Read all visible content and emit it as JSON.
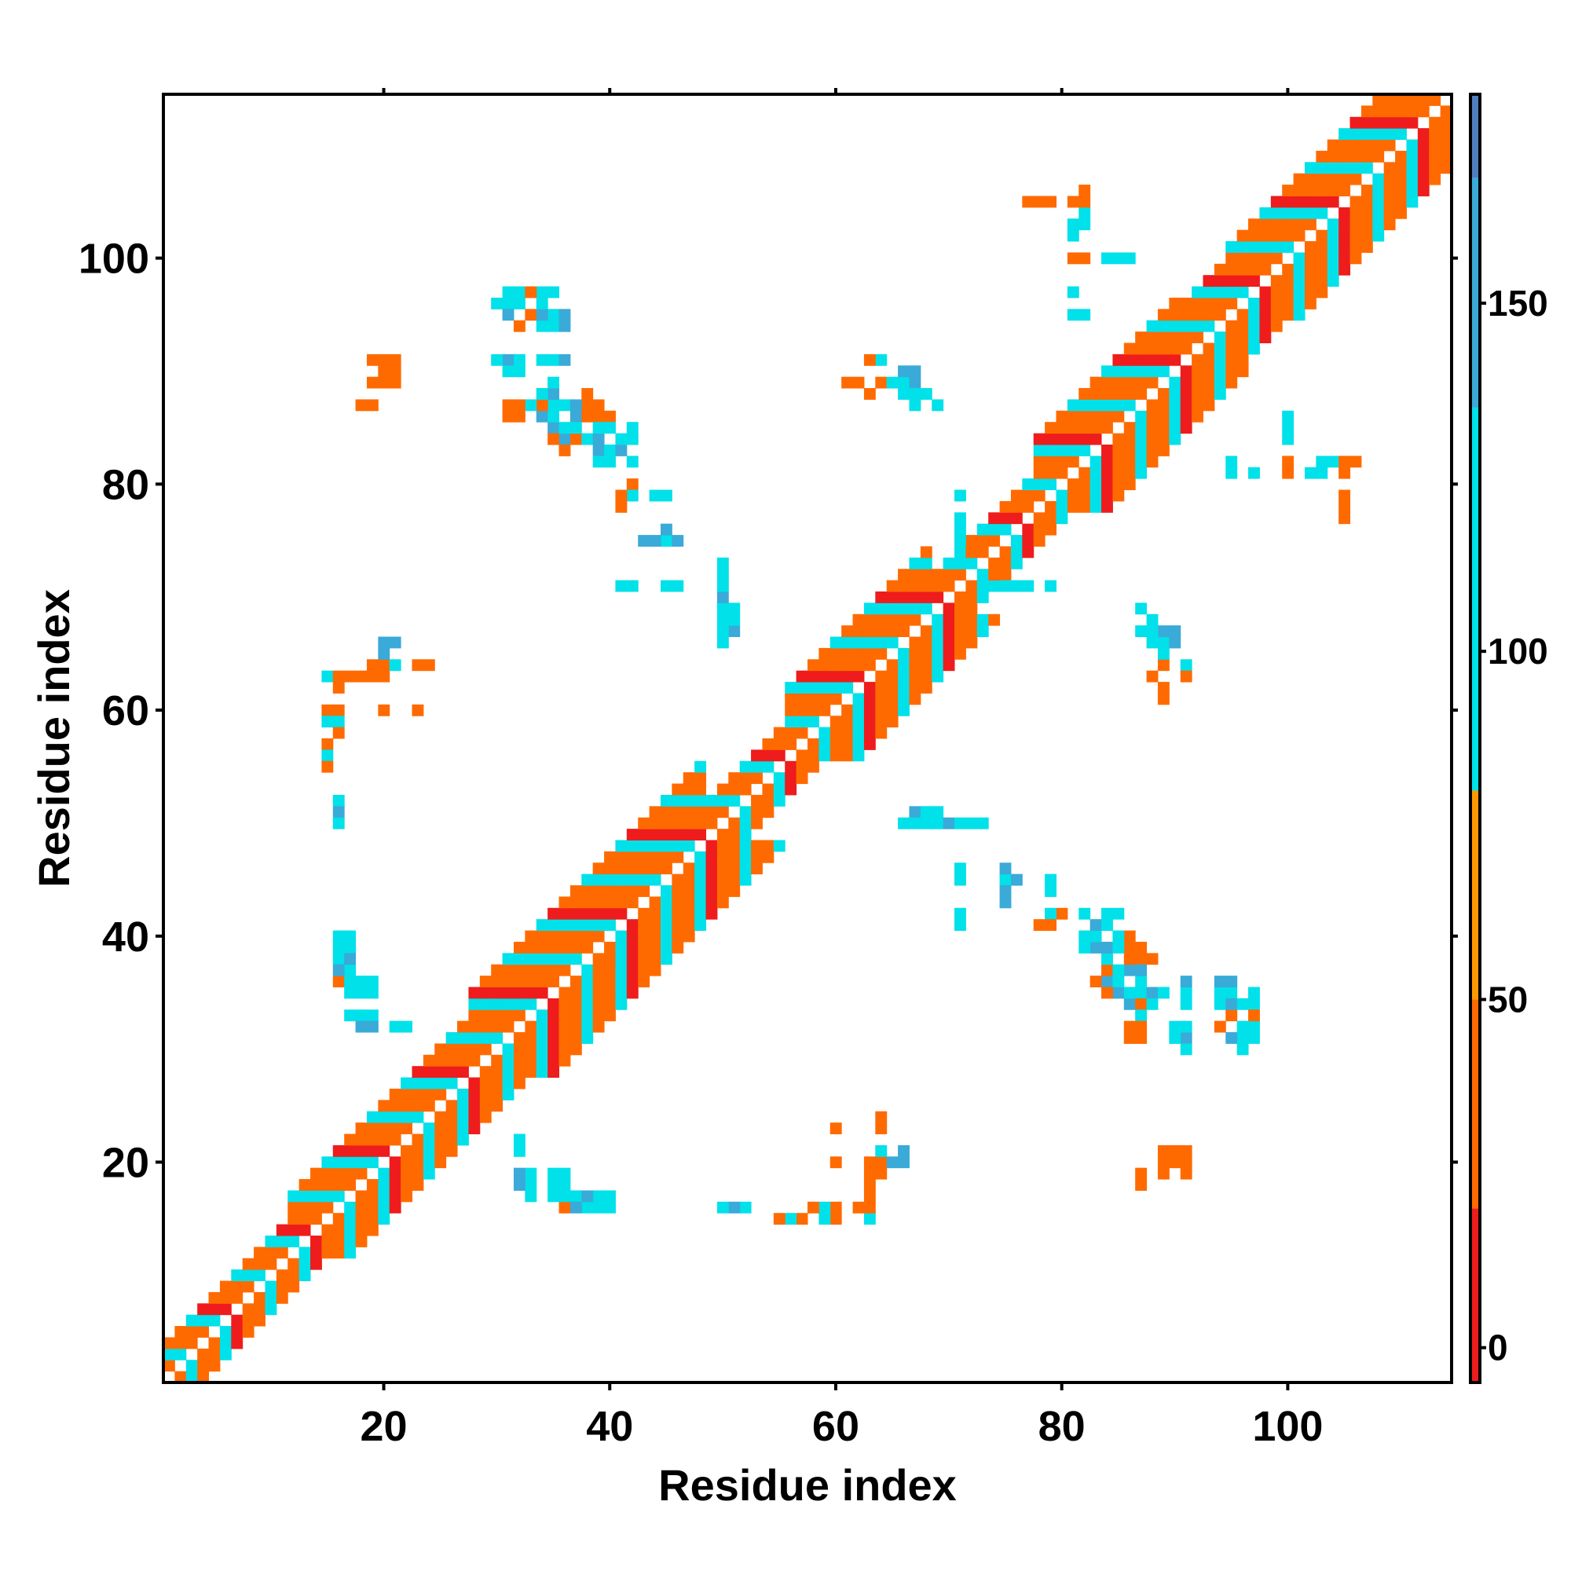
{
  "chart_data": {
    "type": "heatmap",
    "title": "",
    "xlabel": "Residue index",
    "ylabel": "Residue index",
    "xlim": [
      0.5,
      114.5
    ],
    "ylim": [
      0.5,
      114.5
    ],
    "xticks": [
      20,
      40,
      60,
      80,
      100
    ],
    "yticks": [
      20,
      40,
      60,
      80,
      100
    ],
    "grid": false,
    "colorbar": {
      "range": [
        -5,
        180
      ],
      "ticks": [
        0,
        50,
        100,
        150
      ],
      "bands": [
        {
          "from": -5,
          "to": 20,
          "color": "#ee1c1c"
        },
        {
          "from": 20,
          "to": 50,
          "color": "#ff6a00"
        },
        {
          "from": 50,
          "to": 80,
          "color": "#ff9900"
        },
        {
          "from": 80,
          "to": 135,
          "color": "#00e1ea"
        },
        {
          "from": 135,
          "to": 168,
          "color": "#3aaad8"
        },
        {
          "from": 168,
          "to": 180,
          "color": "#4f7fbd"
        }
      ]
    },
    "diagonal_band": {
      "description": "Contacts near the main diagonal, |i-j| <= half-width",
      "segments": [
        {
          "from": 1,
          "to": 12,
          "half_width": 3
        },
        {
          "from": 12,
          "to": 28,
          "half_width": 5
        },
        {
          "from": 28,
          "to": 48,
          "half_width": 7
        },
        {
          "from": 48,
          "to": 56,
          "half_width": 3
        },
        {
          "from": 56,
          "to": 68,
          "half_width": 6
        },
        {
          "from": 68,
          "to": 78,
          "half_width": 3
        },
        {
          "from": 78,
          "to": 90,
          "half_width": 6
        },
        {
          "from": 90,
          "to": 95,
          "half_width": 5
        },
        {
          "from": 95,
          "to": 114,
          "half_width": 6
        }
      ],
      "pattern": [
        0,
        35,
        40,
        100,
        30,
        25,
        95
      ]
    },
    "off_diagonal_points": [
      [
        31,
        97,
        120
      ],
      [
        31,
        96,
        95
      ],
      [
        32,
        97,
        95
      ],
      [
        32,
        96,
        120
      ],
      [
        33,
        95,
        35
      ],
      [
        35,
        97,
        105
      ],
      [
        35,
        95,
        110
      ],
      [
        36,
        95,
        150
      ],
      [
        35,
        94,
        140
      ],
      [
        36,
        94,
        140
      ],
      [
        34,
        97,
        150
      ],
      [
        31,
        91,
        95
      ],
      [
        32,
        91,
        120
      ],
      [
        31,
        90,
        150
      ],
      [
        32,
        90,
        120
      ],
      [
        35,
        91,
        110
      ],
      [
        36,
        91,
        150
      ],
      [
        31,
        86,
        35
      ],
      [
        32,
        86,
        35
      ],
      [
        34,
        86,
        35
      ],
      [
        35,
        87,
        95
      ],
      [
        36,
        87,
        40
      ],
      [
        35,
        88,
        110
      ],
      [
        37,
        86,
        150
      ],
      [
        38,
        86,
        150
      ],
      [
        39,
        86,
        110
      ],
      [
        40,
        86,
        40
      ],
      [
        40,
        85,
        95
      ],
      [
        42,
        85,
        95
      ],
      [
        35,
        85,
        150
      ],
      [
        36,
        84,
        150
      ],
      [
        37,
        84,
        40
      ],
      [
        38,
        84,
        95
      ],
      [
        39,
        83,
        150
      ],
      [
        40,
        83,
        110
      ],
      [
        41,
        83,
        110
      ],
      [
        42,
        84,
        150
      ],
      [
        36,
        83,
        40
      ],
      [
        39,
        82,
        95
      ],
      [
        42,
        80,
        40
      ],
      [
        42,
        79,
        110
      ],
      [
        45,
        79,
        95
      ],
      [
        45,
        75,
        95
      ],
      [
        46,
        75,
        150
      ],
      [
        42,
        71,
        95
      ],
      [
        46,
        71,
        110
      ],
      [
        50,
        69,
        150
      ],
      [
        50,
        68,
        110
      ],
      [
        51,
        67,
        110
      ],
      [
        50,
        67,
        150
      ],
      [
        19,
        91,
        35
      ],
      [
        20,
        91,
        35
      ],
      [
        20,
        90,
        40
      ],
      [
        19,
        89,
        40
      ],
      [
        21,
        89,
        40
      ],
      [
        21,
        90,
        40
      ],
      [
        18,
        87,
        35
      ],
      [
        15,
        63,
        110
      ],
      [
        16,
        63,
        35
      ],
      [
        17,
        63,
        40
      ],
      [
        18,
        63,
        40
      ],
      [
        19,
        64,
        35
      ],
      [
        20,
        64,
        20
      ],
      [
        20,
        63,
        35
      ],
      [
        21,
        64,
        95
      ],
      [
        21,
        66,
        150
      ],
      [
        16,
        62,
        20
      ],
      [
        15,
        60,
        40
      ],
      [
        16,
        60,
        95
      ],
      [
        15,
        59,
        110
      ],
      [
        16,
        59,
        40
      ],
      [
        15,
        57,
        40
      ],
      [
        15,
        56,
        95
      ],
      [
        23,
        64,
        40
      ],
      [
        24,
        64,
        40
      ],
      [
        20,
        60,
        20
      ],
      [
        23,
        60,
        35
      ],
      [
        16,
        52,
        150
      ],
      [
        16,
        51,
        150
      ],
      [
        16,
        50,
        110
      ],
      [
        16,
        40,
        110
      ],
      [
        17,
        40,
        110
      ],
      [
        17,
        39,
        110
      ],
      [
        16,
        38,
        95
      ],
      [
        16,
        36,
        40
      ],
      [
        17,
        36,
        110
      ],
      [
        18,
        36,
        110
      ],
      [
        19,
        36,
        110
      ],
      [
        17,
        35,
        110
      ],
      [
        18,
        35,
        110
      ],
      [
        19,
        35,
        110
      ],
      [
        17,
        33,
        95
      ],
      [
        18,
        33,
        110
      ],
      [
        19,
        33,
        95
      ],
      [
        18,
        32,
        150
      ],
      [
        19,
        32,
        150
      ],
      [
        22,
        32,
        95
      ],
      [
        32,
        21,
        95
      ],
      [
        32,
        19,
        150
      ],
      [
        33,
        19,
        110
      ],
      [
        33,
        18,
        110
      ],
      [
        35,
        19,
        110
      ],
      [
        36,
        19,
        110
      ],
      [
        33,
        17,
        95
      ],
      [
        35,
        18,
        110
      ],
      [
        36,
        18,
        110
      ],
      [
        37,
        17,
        110
      ],
      [
        35,
        17,
        110
      ],
      [
        36,
        17,
        95
      ],
      [
        38,
        17,
        150
      ],
      [
        39,
        17,
        95
      ],
      [
        40,
        17,
        95
      ],
      [
        37,
        16,
        150
      ],
      [
        39,
        16,
        95
      ],
      [
        36,
        16,
        40
      ],
      [
        50,
        16,
        110
      ],
      [
        51,
        16,
        150
      ],
      [
        52,
        16,
        110
      ],
      [
        55,
        15,
        40
      ],
      [
        56,
        15,
        95
      ],
      [
        58,
        16,
        40
      ],
      [
        59,
        16,
        95
      ],
      [
        60,
        16,
        40
      ],
      [
        59,
        15,
        95
      ],
      [
        60,
        15,
        35
      ],
      [
        62,
        16,
        20
      ],
      [
        63,
        16,
        40
      ],
      [
        63,
        15,
        95
      ],
      [
        63,
        17,
        20
      ],
      [
        63,
        18,
        20
      ],
      [
        63,
        19,
        35
      ],
      [
        64,
        19,
        35
      ],
      [
        64,
        20,
        35
      ],
      [
        63,
        20,
        20
      ],
      [
        64,
        21,
        95
      ],
      [
        65,
        20,
        150
      ],
      [
        66,
        20,
        150
      ],
      [
        64,
        23,
        40
      ],
      [
        64,
        24,
        40
      ],
      [
        60,
        23,
        40
      ],
      [
        60,
        20,
        20
      ],
      [
        87,
        19,
        40
      ],
      [
        89,
        19,
        40
      ],
      [
        89,
        20,
        35
      ],
      [
        90,
        20,
        35
      ],
      [
        89,
        21,
        35
      ],
      [
        90,
        21,
        35
      ],
      [
        91,
        21,
        35
      ],
      [
        82,
        42,
        95
      ],
      [
        83,
        41,
        150
      ],
      [
        84,
        42,
        110
      ],
      [
        84,
        41,
        110
      ],
      [
        82,
        40,
        110
      ],
      [
        83,
        39,
        150
      ],
      [
        84,
        39,
        150
      ],
      [
        85,
        39,
        110
      ],
      [
        86,
        38,
        35
      ],
      [
        86,
        39,
        40
      ],
      [
        87,
        39,
        40
      ],
      [
        87,
        38,
        40
      ],
      [
        88,
        38,
        35
      ],
      [
        85,
        37,
        110
      ],
      [
        85,
        36,
        110
      ],
      [
        87,
        37,
        150
      ],
      [
        87,
        36,
        110
      ],
      [
        84,
        35,
        35
      ],
      [
        85,
        35,
        150
      ],
      [
        86,
        35,
        110
      ],
      [
        87,
        35,
        95
      ],
      [
        88,
        35,
        150
      ],
      [
        89,
        35,
        95
      ],
      [
        86,
        34,
        150
      ],
      [
        87,
        34,
        35
      ],
      [
        88,
        34,
        110
      ],
      [
        91,
        35,
        95
      ],
      [
        91,
        34,
        110
      ],
      [
        94,
        35,
        110
      ],
      [
        95,
        35,
        110
      ],
      [
        94,
        34,
        110
      ],
      [
        95,
        34,
        150
      ],
      [
        96,
        34,
        110
      ],
      [
        97,
        34,
        110
      ],
      [
        97,
        33,
        35
      ],
      [
        87,
        33,
        110
      ],
      [
        87,
        32,
        40
      ],
      [
        87,
        31,
        35
      ],
      [
        91,
        31,
        150
      ],
      [
        90,
        31,
        110
      ],
      [
        91,
        30,
        95
      ],
      [
        94,
        32,
        35
      ],
      [
        95,
        31,
        110
      ],
      [
        96,
        31,
        110
      ],
      [
        97,
        31,
        95
      ],
      [
        96,
        30,
        110
      ],
      [
        95,
        31,
        150
      ],
      [
        78,
        41,
        35
      ],
      [
        79,
        41,
        40
      ],
      [
        75,
        43,
        150
      ],
      [
        75,
        44,
        150
      ],
      [
        79,
        44,
        95
      ],
      [
        71,
        41,
        95
      ],
      [
        71,
        45,
        110
      ],
      [
        76,
        45,
        150
      ],
      [
        66,
        50,
        110
      ],
      [
        67,
        50,
        110
      ],
      [
        68,
        50,
        110
      ],
      [
        69,
        50,
        110
      ],
      [
        68,
        51,
        95
      ],
      [
        69,
        51,
        95
      ],
      [
        70,
        50,
        150
      ],
      [
        71,
        50,
        110
      ],
      [
        67,
        51,
        150
      ],
      [
        72,
        50,
        110
      ],
      [
        73,
        50,
        95
      ],
      [
        61,
        89,
        35
      ],
      [
        62,
        89,
        35
      ],
      [
        63,
        88,
        35
      ],
      [
        64,
        89,
        40
      ],
      [
        65,
        89,
        150
      ],
      [
        66,
        89,
        150
      ],
      [
        67,
        89,
        150
      ],
      [
        66,
        88,
        110
      ],
      [
        67,
        88,
        150
      ],
      [
        68,
        88,
        150
      ],
      [
        67,
        87,
        110
      ],
      [
        69,
        87,
        95
      ],
      [
        100,
        86,
        95
      ],
      [
        100,
        85,
        95
      ],
      [
        100,
        82,
        40
      ],
      [
        103,
        82,
        95
      ],
      [
        104,
        82,
        95
      ],
      [
        105,
        82,
        20
      ],
      [
        106,
        82,
        20
      ],
      [
        105,
        79,
        35
      ],
      [
        105,
        78,
        35
      ],
      [
        95,
        82,
        95
      ],
      [
        97,
        81,
        110
      ],
      [
        77,
        105,
        40
      ],
      [
        78,
        105,
        40
      ],
      [
        81,
        105,
        20
      ],
      [
        81,
        103,
        110
      ],
      [
        81,
        102,
        110
      ],
      [
        81,
        100,
        40
      ],
      [
        84,
        100,
        110
      ],
      [
        85,
        100,
        95
      ],
      [
        81,
        95,
        95
      ],
      [
        88,
        68,
        110
      ],
      [
        88,
        67,
        110
      ],
      [
        89,
        67,
        150
      ],
      [
        90,
        67,
        150
      ],
      [
        90,
        66,
        150
      ],
      [
        89,
        66,
        110
      ],
      [
        89,
        65,
        95
      ],
      [
        91,
        64,
        95
      ],
      [
        91,
        63,
        40
      ],
      [
        71,
        79,
        95
      ],
      [
        71,
        74,
        110
      ],
      [
        75,
        71,
        110
      ],
      [
        76,
        71,
        110
      ],
      [
        77,
        71,
        95
      ]
    ]
  }
}
